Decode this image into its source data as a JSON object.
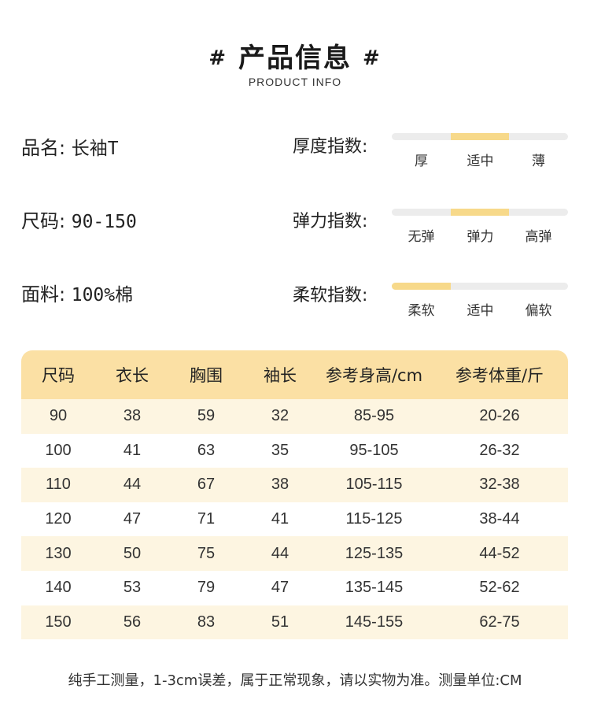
{
  "header": {
    "hash_left": "#",
    "title": "产品信息",
    "hash_right": "#",
    "subtitle": "PRODUCT INFO"
  },
  "specs": [
    {
      "key": "品名:",
      "value": "长袖T"
    },
    {
      "key": "尺码:",
      "value": "90-150"
    },
    {
      "key": "面料:",
      "value": "100%棉"
    }
  ],
  "indices": [
    {
      "label": "厚度指数:",
      "ticks": [
        "厚",
        "适中",
        "薄"
      ],
      "selected_segment": 2
    },
    {
      "label": "弹力指数:",
      "ticks": [
        "无弹",
        "弹力",
        "高弹"
      ],
      "selected_segment": 2
    },
    {
      "label": "柔软指数:",
      "ticks": [
        "柔软",
        "适中",
        "偏软"
      ],
      "selected_segment": 1
    }
  ],
  "colors": {
    "accent": "#f7d98a",
    "header_bg": "#fbe0a4",
    "row_alt": "#fdf5e1",
    "track": "#ececec"
  },
  "table": {
    "headers": [
      "尺码",
      "衣长",
      "胸围",
      "袖长",
      "参考身高/cm",
      "参考体重/斤"
    ],
    "rows": [
      [
        "90",
        "38",
        "59",
        "32",
        "85-95",
        "20-26"
      ],
      [
        "100",
        "41",
        "63",
        "35",
        "95-105",
        "26-32"
      ],
      [
        "110",
        "44",
        "67",
        "38",
        "105-115",
        "32-38"
      ],
      [
        "120",
        "47",
        "71",
        "41",
        "115-125",
        "38-44"
      ],
      [
        "130",
        "50",
        "75",
        "44",
        "125-135",
        "44-52"
      ],
      [
        "140",
        "53",
        "79",
        "47",
        "135-145",
        "52-62"
      ],
      [
        "150",
        "56",
        "83",
        "51",
        "145-155",
        "62-75"
      ]
    ]
  },
  "footer": {
    "note": "纯手工测量，1-3cm误差，属于正常现象，请以实物为准。测量单位:CM"
  }
}
